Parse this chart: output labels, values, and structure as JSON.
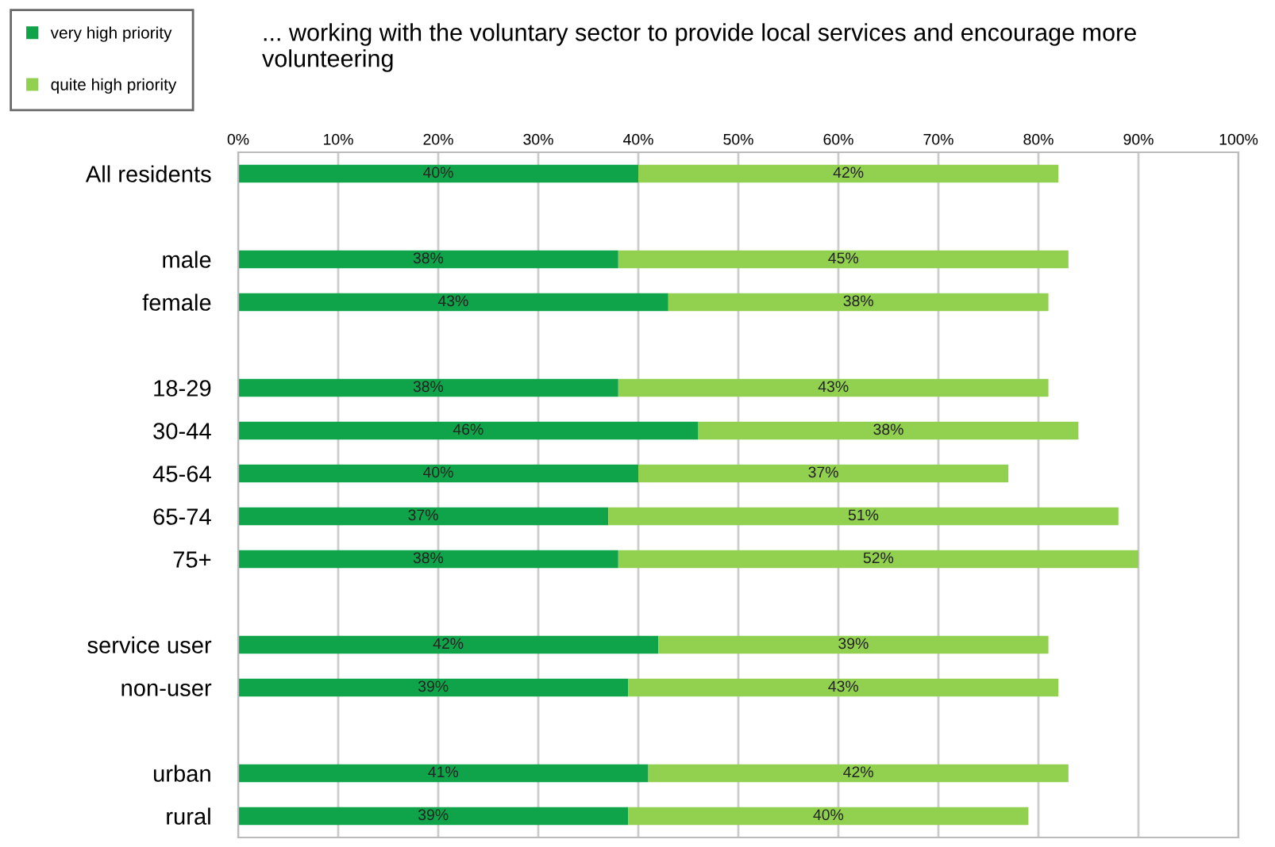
{
  "chart_data": {
    "type": "bar",
    "orientation": "horizontal",
    "stacked": true,
    "title": "... working with the voluntary sector to provide local services and encourage more volunteering",
    "categories": [
      "All residents",
      null,
      "male",
      "female",
      null,
      "18-29",
      "30-44",
      "45-64",
      "65-74",
      "75+",
      null,
      "service user",
      "non-user",
      null,
      "urban",
      "rural"
    ],
    "series": [
      {
        "name": "very high priority",
        "color": "#0fa34a",
        "values": [
          40,
          null,
          38,
          43,
          null,
          38,
          46,
          40,
          37,
          38,
          null,
          42,
          39,
          null,
          41,
          39
        ],
        "value_labels": [
          "40%",
          null,
          "38%",
          "43%",
          null,
          "38%",
          "46%",
          "40%",
          "37%",
          "38%",
          null,
          "42%",
          "39%",
          null,
          "41%",
          "39%"
        ]
      },
      {
        "name": "quite high priority",
        "color": "#92d050",
        "values": [
          42,
          null,
          45,
          38,
          null,
          43,
          38,
          37,
          51,
          52,
          null,
          39,
          43,
          null,
          42,
          40
        ],
        "value_labels": [
          "42%",
          null,
          "45%",
          "38%",
          null,
          "43%",
          "38%",
          "37%",
          "51%",
          "52%",
          null,
          "39%",
          "43%",
          null,
          "42%",
          "40%"
        ]
      }
    ],
    "xlim": [
      0,
      100
    ],
    "xticks": [
      {
        "value": 0,
        "label": "0%"
      },
      {
        "value": 10,
        "label": "10%"
      },
      {
        "value": 20,
        "label": "20%"
      },
      {
        "value": 30,
        "label": "30%"
      },
      {
        "value": 40,
        "label": "40%"
      },
      {
        "value": 50,
        "label": "50%"
      },
      {
        "value": 60,
        "label": "60%"
      },
      {
        "value": 70,
        "label": "70%"
      },
      {
        "value": 80,
        "label": "80%"
      },
      {
        "value": 90,
        "label": "90%"
      },
      {
        "value": 100,
        "label": "100%"
      }
    ],
    "grid": "x",
    "legend": "top left"
  }
}
